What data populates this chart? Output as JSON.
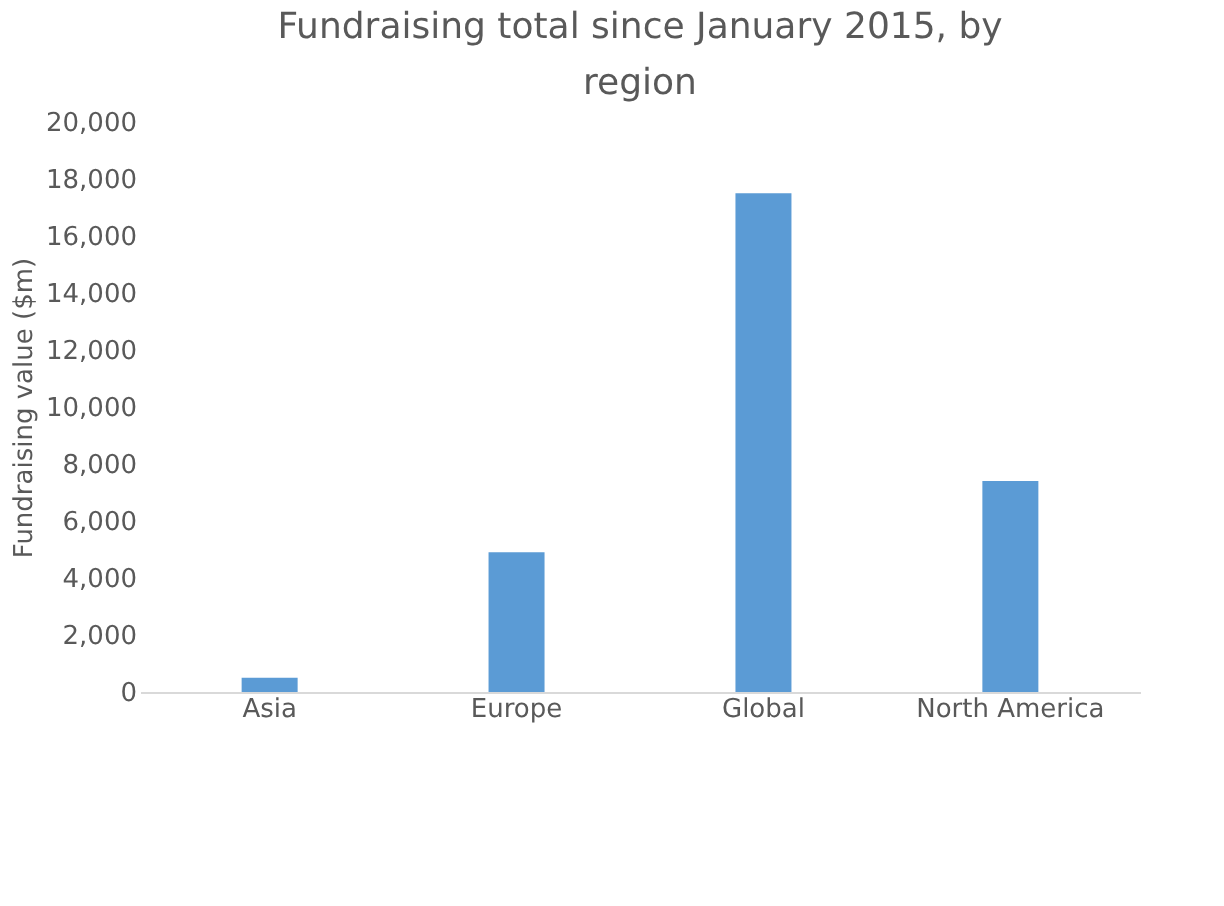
{
  "chart_data": {
    "type": "bar",
    "title": "Fundraising total since January 2015, by region",
    "ylabel": "Fundraising value ($m)",
    "categories": [
      "Asia",
      "Europe",
      "Global",
      "North America"
    ],
    "values": [
      500,
      4900,
      17500,
      7400
    ],
    "color": "#5b9bd5",
    "ylim": [
      0,
      20000
    ],
    "yticks": [
      0,
      {
        "value": 2000,
        "label": "2,000"
      },
      {
        "value": 4000,
        "label": "4,000"
      },
      {
        "value": 6000,
        "label": "6,000"
      },
      {
        "value": 8000,
        "label": "8,000"
      },
      {
        "value": 10000,
        "label": "10,000"
      },
      {
        "value": 12000,
        "label": "12,000"
      },
      {
        "value": 14000,
        "label": "14,000"
      },
      {
        "value": 16000,
        "label": "16,000"
      },
      {
        "value": 18000,
        "label": "18,000"
      },
      {
        "value": 20000,
        "label": "20,000"
      }
    ],
    "grid": false
  }
}
